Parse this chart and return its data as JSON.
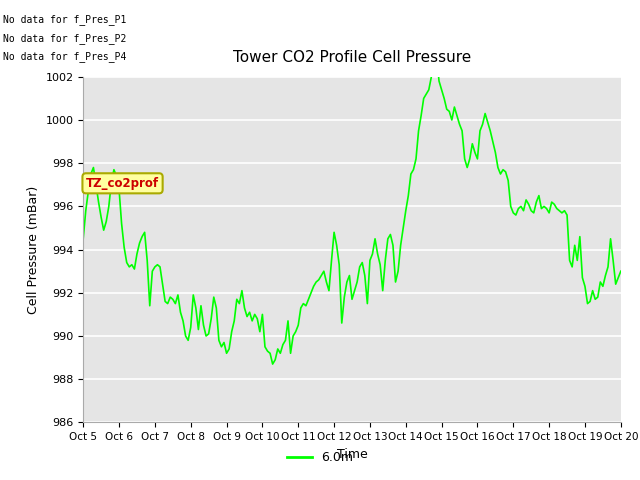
{
  "title": "Tower CO2 Profile Cell Pressure",
  "xlabel": "Time",
  "ylabel": "Cell Pressure (mBar)",
  "ylim": [
    986,
    1002
  ],
  "background_color": "#e5e5e5",
  "plot_bg_color": "#e5e5e5",
  "line_color": "#00ff00",
  "line_width": 1.2,
  "grid_color": "white",
  "xtick_labels": [
    "Oct 5",
    "Oct 6",
    "Oct 7",
    "Oct 8",
    "Oct 9",
    "Oct 10",
    "Oct 11",
    "Oct 12",
    "Oct 13",
    "Oct 14",
    "Oct 15",
    "Oct 16",
    "Oct 17",
    "Oct 18",
    "Oct 19",
    "Oct 20"
  ],
  "ytick_values": [
    986,
    988,
    990,
    992,
    994,
    996,
    998,
    1000,
    1002
  ],
  "legend_label": "6.0m",
  "no_data_labels": [
    "No data for f_Pres_P1",
    "No data for f_Pres_P2",
    "No data for f_Pres_P4"
  ],
  "tz_label": "TZ_co2prof",
  "tz_box_color": "#ffffa0",
  "tz_text_color": "#cc0000",
  "y_data": [
    994.5,
    995.8,
    996.7,
    997.5,
    997.8,
    997.0,
    996.2,
    995.5,
    994.9,
    995.3,
    996.0,
    997.1,
    997.7,
    997.4,
    996.8,
    995.2,
    994.1,
    993.4,
    993.2,
    993.3,
    993.1,
    993.8,
    994.3,
    994.6,
    994.8,
    993.5,
    991.4,
    993.0,
    993.2,
    993.3,
    993.2,
    992.4,
    991.6,
    991.5,
    991.8,
    991.7,
    991.5,
    991.9,
    991.1,
    990.7,
    990.0,
    989.8,
    990.4,
    991.9,
    991.3,
    990.3,
    991.4,
    990.5,
    990.0,
    990.1,
    990.8,
    991.8,
    991.3,
    989.8,
    989.5,
    989.7,
    989.2,
    989.4,
    990.2,
    990.7,
    991.7,
    991.5,
    992.1,
    991.3,
    990.9,
    991.1,
    990.7,
    991.0,
    990.8,
    990.2,
    991.0,
    989.5,
    989.3,
    989.2,
    988.7,
    988.9,
    989.4,
    989.2,
    989.6,
    989.8,
    990.7,
    989.2,
    990.0,
    990.2,
    990.5,
    991.3,
    991.5,
    991.4,
    991.7,
    992.0,
    992.3,
    992.5,
    992.6,
    992.8,
    993.0,
    992.5,
    992.1,
    993.5,
    994.8,
    994.2,
    993.3,
    990.6,
    991.8,
    992.5,
    992.8,
    991.7,
    992.1,
    992.5,
    993.2,
    993.4,
    992.8,
    991.5,
    993.5,
    993.8,
    994.5,
    993.8,
    993.3,
    992.1,
    993.5,
    994.5,
    994.7,
    994.2,
    992.5,
    993.0,
    994.2,
    995.0,
    995.8,
    996.5,
    997.5,
    997.7,
    998.2,
    999.5,
    1000.2,
    1001.0,
    1001.2,
    1001.4,
    1002.0,
    1002.5,
    1003.0,
    1001.8,
    1001.4,
    1001.0,
    1000.5,
    1000.4,
    1000.0,
    1000.6,
    1000.2,
    999.8,
    999.5,
    998.2,
    997.8,
    998.2,
    998.9,
    998.5,
    998.2,
    999.5,
    999.8,
    1000.3,
    999.9,
    999.5,
    999.0,
    998.5,
    997.8,
    997.5,
    997.7,
    997.6,
    997.2,
    996.0,
    995.7,
    995.6,
    995.9,
    996.0,
    995.8,
    996.3,
    996.1,
    995.8,
    995.7,
    996.2,
    996.5,
    995.9,
    996.0,
    995.9,
    995.7,
    996.2,
    996.1,
    995.9,
    995.8,
    995.7,
    995.8,
    995.6,
    993.5,
    993.2,
    994.2,
    993.5,
    994.6,
    992.7,
    992.3,
    991.5,
    991.6,
    992.1,
    991.7,
    991.8,
    992.5,
    992.3,
    992.8,
    993.2,
    994.5,
    993.5,
    992.4,
    992.7,
    993.0
  ]
}
